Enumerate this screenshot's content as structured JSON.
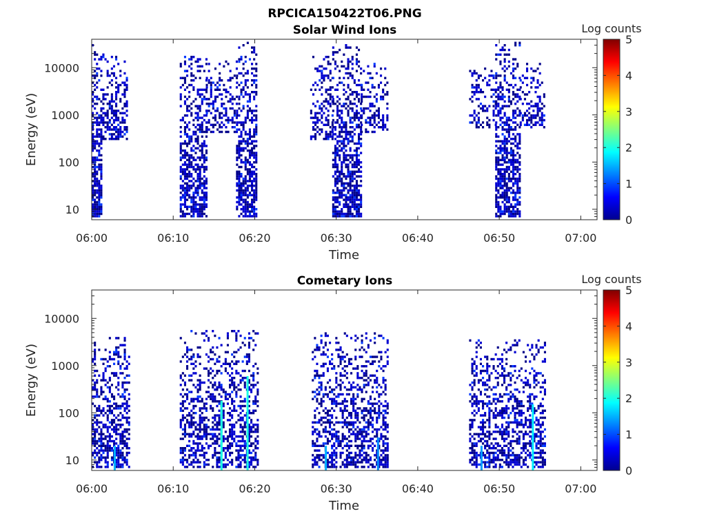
{
  "figure_title": "RPCICA150422T06.PNG",
  "chart_data": [
    {
      "type": "heatmap",
      "title": "Solar Wind Ions",
      "xlabel": "Time",
      "ylabel": "Energy (eV)",
      "y_scale": "log",
      "ylim": [
        6,
        40000
      ],
      "xlim_minutes": [
        0,
        62
      ],
      "x_tick_labels": [
        "06:00",
        "06:10",
        "06:20",
        "06:30",
        "06:40",
        "06:50",
        "07:00"
      ],
      "y_tick_labels": [
        "10",
        "100",
        "1000",
        "10000"
      ],
      "y_tick_values": [
        10,
        100,
        1000,
        10000
      ],
      "colorbar": {
        "label": "Log counts",
        "range": [
          0,
          5
        ],
        "tick_labels": [
          "0",
          "1",
          "2",
          "3",
          "4",
          "5"
        ]
      },
      "bursts": [
        {
          "start": 0.0,
          "end": 1.3,
          "lo": 7,
          "hi": 30000,
          "d": 0.7
        },
        {
          "start": 1.3,
          "end": 4.4,
          "lo": 300,
          "hi": 20000,
          "d": 0.45
        },
        {
          "start": 10.8,
          "end": 14.0,
          "lo": 7,
          "hi": 20000,
          "d": 0.6
        },
        {
          "start": 14.0,
          "end": 17.7,
          "lo": 400,
          "hi": 15000,
          "d": 0.4
        },
        {
          "start": 17.7,
          "end": 20.3,
          "lo": 7,
          "hi": 35000,
          "d": 0.65
        },
        {
          "start": 26.8,
          "end": 29.5,
          "lo": 300,
          "hi": 20000,
          "d": 0.45
        },
        {
          "start": 29.5,
          "end": 33.0,
          "lo": 7,
          "hi": 30000,
          "d": 0.65
        },
        {
          "start": 33.0,
          "end": 36.3,
          "lo": 400,
          "hi": 12000,
          "d": 0.4
        },
        {
          "start": 46.3,
          "end": 49.5,
          "lo": 500,
          "hi": 15000,
          "d": 0.4
        },
        {
          "start": 49.5,
          "end": 52.5,
          "lo": 7,
          "hi": 35000,
          "d": 0.65
        },
        {
          "start": 52.5,
          "end": 55.5,
          "lo": 500,
          "hi": 15000,
          "d": 0.4
        }
      ]
    },
    {
      "type": "heatmap",
      "title": "Cometary Ions",
      "xlabel": "Time",
      "ylabel": "Energy (eV)",
      "y_scale": "log",
      "ylim": [
        6,
        40000
      ],
      "xlim_minutes": [
        0,
        62
      ],
      "x_tick_labels": [
        "06:00",
        "06:10",
        "06:20",
        "06:30",
        "06:40",
        "06:50",
        "07:00"
      ],
      "y_tick_labels": [
        "10",
        "100",
        "1000",
        "10000"
      ],
      "y_tick_values": [
        10,
        100,
        1000,
        10000
      ],
      "colorbar": {
        "label": "Log counts",
        "range": [
          0,
          5
        ],
        "tick_labels": [
          "0",
          "1",
          "2",
          "3",
          "4",
          "5"
        ]
      },
      "bursts": [
        {
          "start": 0.0,
          "end": 4.5,
          "lo": 7,
          "hi": 4000,
          "d": 0.55
        },
        {
          "start": 10.8,
          "end": 20.5,
          "lo": 7,
          "hi": 6000,
          "d": 0.5
        },
        {
          "start": 27.0,
          "end": 36.4,
          "lo": 7,
          "hi": 5000,
          "d": 0.5
        },
        {
          "start": 46.3,
          "end": 55.5,
          "lo": 7,
          "hi": 4000,
          "d": 0.5
        }
      ],
      "streaks": [
        {
          "t": 2.7,
          "lo": 7,
          "hi": 20,
          "level": 1.5
        },
        {
          "t": 15.8,
          "lo": 7,
          "hi": 180,
          "level": 2.0
        },
        {
          "t": 19.0,
          "lo": 7,
          "hi": 600,
          "level": 2.0
        },
        {
          "t": 28.6,
          "lo": 7,
          "hi": 20,
          "level": 1.5
        },
        {
          "t": 35.0,
          "lo": 7,
          "hi": 30,
          "level": 1.3
        },
        {
          "t": 47.7,
          "lo": 7,
          "hi": 20,
          "level": 1.4
        },
        {
          "t": 54.0,
          "lo": 7,
          "hi": 150,
          "level": 1.8
        }
      ]
    }
  ]
}
